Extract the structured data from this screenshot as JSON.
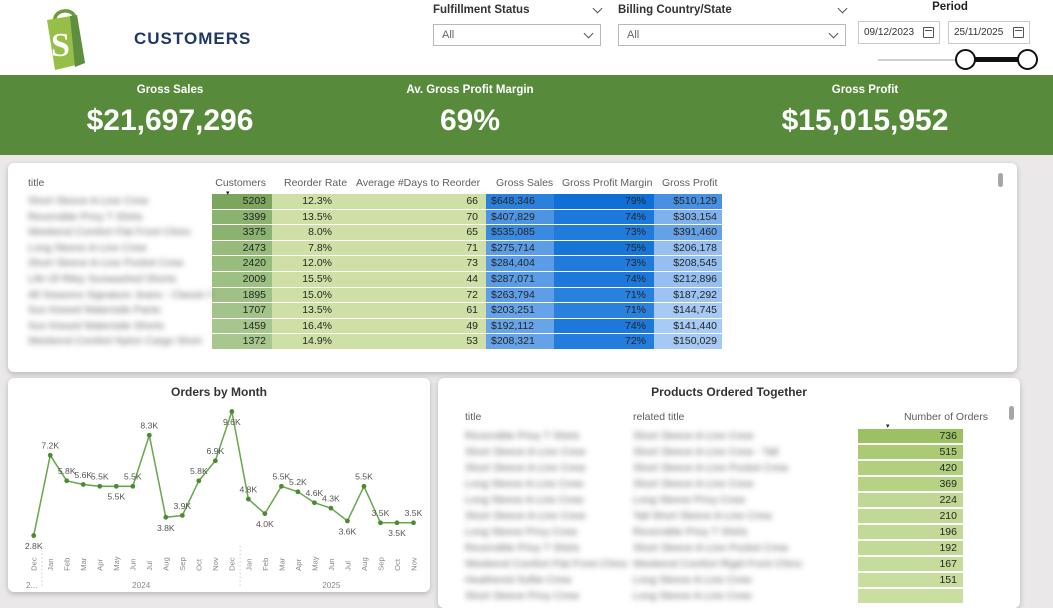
{
  "header": {
    "title": "CUSTOMERS",
    "logo": "shopify",
    "filters": [
      {
        "label": "Fulfillment Status",
        "value": "All"
      },
      {
        "label": "Billing Country/State",
        "value": "All"
      }
    ],
    "period": {
      "label": "Period",
      "start_date": "09/12/2023",
      "end_date": "25/11/2025"
    }
  },
  "kpis": [
    {
      "label": "Gross Sales",
      "value": "$21,697,296"
    },
    {
      "label": "Av. Gross Profit Margin",
      "value": "69%"
    },
    {
      "label": "Gross Profit",
      "value": "$15,015,952"
    }
  ],
  "customers_table": {
    "columns": {
      "title": "title",
      "customers": "Customers",
      "reorder": "Reorder Rate",
      "days": "Average #Days to Reorder",
      "sales": "Gross Sales",
      "margin": "Gross Profit Margin",
      "profit": "Gross Profit"
    },
    "sort_column": "Customers",
    "light_green": "#cfe0a6",
    "rows": [
      {
        "title": "Short Sleeve A-Line Crew",
        "customers": "5203",
        "reorder": "12.3%",
        "days": "66",
        "sales": "$648,346",
        "margin": "79%",
        "profit": "$510,129",
        "colors": {
          "cust": "#7ca55e",
          "sales": "#2b80dc",
          "margin": "#0e6fd6",
          "profit": "#4890e2"
        }
      },
      {
        "title": "Reversible Privy T Shirts",
        "customers": "3399",
        "reorder": "13.5%",
        "days": "70",
        "sales": "$407,829",
        "margin": "74%",
        "profit": "$303,154",
        "colors": {
          "cust": "#8bb26e",
          "sales": "#4d94e3",
          "margin": "#1c78da",
          "profit": "#7fb2ed"
        }
      },
      {
        "title": "Weekend Comfort Flat Front Chino",
        "customers": "3375",
        "reorder": "8.0%",
        "days": "65",
        "sales": "$535,085",
        "margin": "73%",
        "profit": "$391,460",
        "colors": {
          "cust": "#8bb26e",
          "sales": "#3a8adf",
          "margin": "#207bdb",
          "profit": "#64a1e7"
        }
      },
      {
        "title": "Long Sleeve A-Line Crew",
        "customers": "2473",
        "reorder": "7.8%",
        "days": "71",
        "sales": "$275,714",
        "margin": "75%",
        "profit": "$206,178",
        "colors": {
          "cust": "#97bb7b",
          "sales": "#5c9de6",
          "margin": "#1875d8",
          "profit": "#97c0f1"
        }
      },
      {
        "title": "Short Sleeve A-Line Pocket Crew",
        "customers": "2420",
        "reorder": "12.0%",
        "days": "73",
        "sales": "$284,404",
        "margin": "73%",
        "profit": "$208,545",
        "colors": {
          "cust": "#98bc7c",
          "sales": "#5a9ce5",
          "margin": "#207bdb",
          "profit": "#96bff1"
        }
      },
      {
        "title": "Life Of Riley Sunwashed Shorts",
        "customers": "2009",
        "reorder": "15.5%",
        "days": "44",
        "sales": "$287,071",
        "margin": "74%",
        "profit": "$212,896",
        "colors": {
          "cust": "#9dc083",
          "sales": "#5a9ce5",
          "margin": "#1c78da",
          "profit": "#95bff0"
        }
      },
      {
        "title": "All Seasons Signature Jeans - Classic Fit",
        "customers": "1895",
        "reorder": "15.0%",
        "days": "72",
        "sales": "$263,794",
        "margin": "71%",
        "profit": "$187,292",
        "colors": {
          "cust": "#9fc185",
          "sales": "#5e9ee6",
          "margin": "#2a80dd",
          "profit": "#9cc3f2"
        }
      },
      {
        "title": "Sun Kissed Waterside Pants",
        "customers": "1707",
        "reorder": "13.5%",
        "days": "61",
        "sales": "$203,251",
        "margin": "71%",
        "profit": "$144,745",
        "colors": {
          "cust": "#a2c389",
          "sales": "#66a3e8",
          "margin": "#2a80dd",
          "profit": "#a7caf4"
        }
      },
      {
        "title": "Sun Kissed Waterside Shorts",
        "customers": "1459",
        "reorder": "16.4%",
        "days": "49",
        "sales": "$192,112",
        "margin": "74%",
        "profit": "$141,440",
        "colors": {
          "cust": "#a6c68e",
          "sales": "#68a4e8",
          "margin": "#1c78da",
          "profit": "#a7cbf4"
        }
      },
      {
        "title": "Weekend Comfort Nylon Cargo Short",
        "customers": "1372",
        "reorder": "14.9%",
        "days": "53",
        "sales": "$208,321",
        "margin": "72%",
        "profit": "$150,029",
        "colors": {
          "cust": "#a7c78f",
          "sales": "#65a2e7",
          "margin": "#247ddc",
          "profit": "#a5c9f3"
        }
      }
    ]
  },
  "chart_data": {
    "type": "line",
    "title": "Orders by Month",
    "line_color": "#69a84f",
    "dot_color": "#4c8a33",
    "ylim": [
      2600,
      9600
    ],
    "legend": "none",
    "grid": "off",
    "x_years": [
      "2...",
      "2024",
      "2025"
    ],
    "points": [
      {
        "month": "Dec",
        "year": "2023",
        "value_k": 2.8,
        "label": "2.8K",
        "pos": "below"
      },
      {
        "month": "Jan",
        "year": "2024",
        "value_k": 7.2,
        "label": "7.2K",
        "pos": "above"
      },
      {
        "month": "Feb",
        "year": "2024",
        "value_k": 5.8,
        "label": "5.8K",
        "pos": "above"
      },
      {
        "month": "Mar",
        "year": "2024",
        "value_k": 5.6,
        "label": "5.6K",
        "pos": "above"
      },
      {
        "month": "Apr",
        "year": "2024",
        "value_k": 5.5,
        "label": "5.5K",
        "pos": "above"
      },
      {
        "month": "May",
        "year": "2024",
        "value_k": 5.5,
        "label": "5.5K",
        "pos": "below"
      },
      {
        "month": "Jun",
        "year": "2024",
        "value_k": 5.5,
        "label": "5.5K",
        "pos": "above"
      },
      {
        "month": "Jul",
        "year": "2024",
        "value_k": 8.3,
        "label": "8.3K",
        "pos": "above"
      },
      {
        "month": "Aug",
        "year": "2024",
        "value_k": 3.8,
        "label": "3.8K",
        "pos": "below"
      },
      {
        "month": "Sep",
        "year": "2024",
        "value_k": 3.9,
        "label": "3.9K",
        "pos": "above"
      },
      {
        "month": "Oct",
        "year": "2024",
        "value_k": 5.8,
        "label": "5.8K",
        "pos": "above"
      },
      {
        "month": "Nov",
        "year": "2024",
        "value_k": 6.9,
        "label": "6.9K",
        "pos": "above"
      },
      {
        "month": "Dec",
        "year": "2024",
        "value_k": 9.6,
        "label": "9.6K",
        "pos": "below"
      },
      {
        "month": "Jan",
        "year": "2025",
        "value_k": 4.8,
        "label": "4.8K",
        "pos": "above"
      },
      {
        "month": "Feb",
        "year": "2025",
        "value_k": 4.0,
        "label": "4.0K",
        "pos": "below"
      },
      {
        "month": "Mar",
        "year": "2025",
        "value_k": 5.5,
        "label": "5.5K",
        "pos": "above"
      },
      {
        "month": "Apr",
        "year": "2025",
        "value_k": 5.2,
        "label": "5.2K",
        "pos": "above"
      },
      {
        "month": "May",
        "year": "2025",
        "value_k": 4.6,
        "label": "4.6K",
        "pos": "above"
      },
      {
        "month": "Jun",
        "year": "2025",
        "value_k": 4.3,
        "label": "4.3K",
        "pos": "above"
      },
      {
        "month": "Jul",
        "year": "2025",
        "value_k": 3.6,
        "label": "3.6K",
        "pos": "below"
      },
      {
        "month": "Aug",
        "year": "2025",
        "value_k": 5.5,
        "label": "5.5K",
        "pos": "above"
      },
      {
        "month": "Sep",
        "year": "2025",
        "value_k": 3.5,
        "label": "3.5K",
        "pos": "above"
      },
      {
        "month": "Oct",
        "year": "2025",
        "value_k": 3.5,
        "label": "3.5K",
        "pos": "below"
      },
      {
        "month": "Nov",
        "year": "2025",
        "value_k": 3.5,
        "label": "3.5K",
        "pos": "above"
      }
    ]
  },
  "products_table": {
    "title": "Products Ordered Together",
    "columns": {
      "title": "title",
      "related": "related title",
      "orders": "Number of Orders"
    },
    "sort_column": "Number of Orders",
    "rows": [
      {
        "title": "Reversible Privy T Shirts",
        "related": "Short Sleeve A-Line Crew",
        "orders": "736",
        "color": "#9cc163"
      },
      {
        "title": "Short Sleeve A-Line Crew",
        "related": "Short Sleeve A-Line Crew - Tall",
        "orders": "515",
        "color": "#aaca74"
      },
      {
        "title": "Short Sleeve A-Line Crew",
        "related": "Short Sleeve A-Line Pocket Crew",
        "orders": "420",
        "color": "#b1cf7d"
      },
      {
        "title": "Long Sleeve A-Line Crew",
        "related": "Short Sleeve A-Line Crew",
        "orders": "369",
        "color": "#b6d284"
      },
      {
        "title": "Long Sleeve A-Line Crew",
        "related": "Long Sleeve Privy Crew",
        "orders": "224",
        "color": "#c0d893"
      },
      {
        "title": "Short Sleeve A-Line Crew",
        "related": "Tall Short Sleeve A-Line Crew",
        "orders": "210",
        "color": "#c2d995"
      },
      {
        "title": "Long Sleeve Privy Crew",
        "related": "Reversible Privy T Shirts",
        "orders": "196",
        "color": "#c3da97"
      },
      {
        "title": "Reversible Privy T Shirts",
        "related": "Short Sleeve A-Line Pocket Crew",
        "orders": "192",
        "color": "#c3da97"
      },
      {
        "title": "Weekend Comfort Flat Front Chino",
        "related": "Weekend Comfort Rigid Front Chino",
        "orders": "167",
        "color": "#c6dc9b"
      },
      {
        "title": "Heathered Softie Crew",
        "related": "Long Sleeve A-Line Crew",
        "orders": "151",
        "color": "#c8dd9e"
      },
      {
        "title": "Short Sleeve Privy Crew",
        "related": "Long Sleeve A-Line Crew",
        "orders": "",
        "color": "#cadea1"
      }
    ]
  }
}
